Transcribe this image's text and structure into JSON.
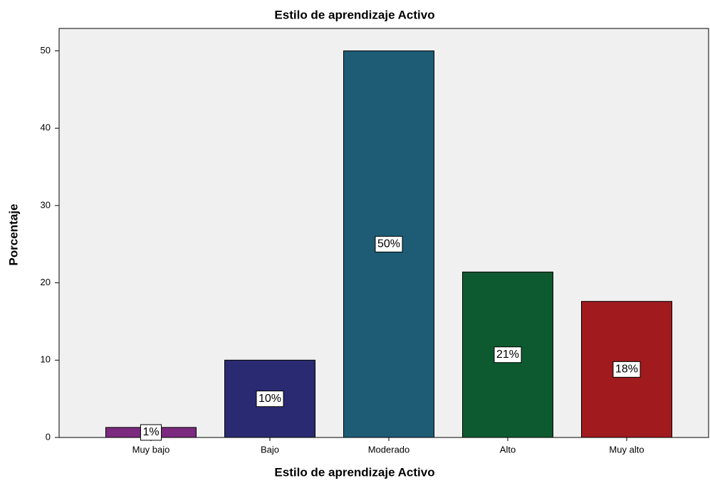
{
  "chart_data": {
    "type": "bar",
    "title": "Estilo de aprendizaje Activo",
    "x_label": "Estilo de aprendizaje Activo",
    "y_label": "Porcentaje",
    "categories": [
      "Muy bajo",
      "Bajo",
      "Moderado",
      "Alto",
      "Muy alto"
    ],
    "values": [
      1.3,
      10,
      50,
      21.4,
      17.6
    ],
    "value_labels": [
      "1%",
      "10%",
      "50%",
      "21%",
      "18%"
    ],
    "colors": [
      "#7b2a7f",
      "#2a2a72",
      "#1d5c74",
      "#0d5a30",
      "#a01a1e"
    ],
    "ylim": [
      0,
      52.9
    ],
    "yticks": [
      0,
      10,
      20,
      30,
      40,
      50
    ]
  }
}
